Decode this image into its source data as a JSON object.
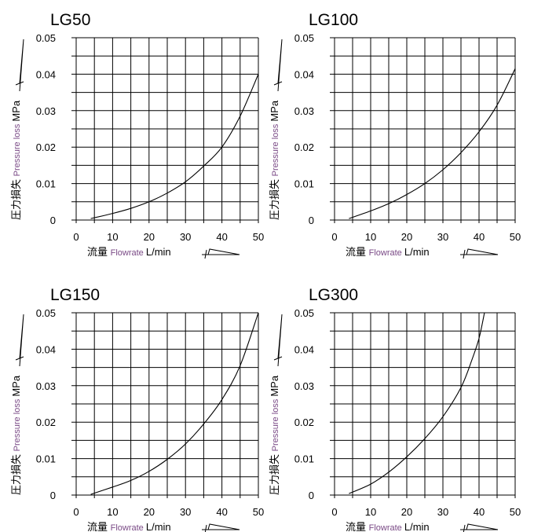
{
  "chart_data": [
    {
      "type": "line",
      "title": "LG50",
      "ylabel": {
        "jp": "圧力損失",
        "en": "Pressure loss",
        "unit": "MPa"
      },
      "xlabel": {
        "jp": "流量",
        "en": "Flowrate",
        "unit": "L/min"
      },
      "xlim": [
        0,
        50
      ],
      "ylim": [
        0,
        0.05
      ],
      "xticks": [
        "0",
        "10",
        "20",
        "30",
        "40",
        "50"
      ],
      "yticks": [
        "0",
        "0.01",
        "0.02",
        "0.03",
        "0.04",
        "0.05"
      ],
      "grid": true,
      "series": [
        {
          "x": [
            4,
            10,
            15,
            20,
            25,
            30,
            35,
            40,
            45,
            50
          ],
          "y": [
            0.0004,
            0.0018,
            0.0032,
            0.005,
            0.0074,
            0.0105,
            0.0148,
            0.02,
            0.0285,
            0.04
          ]
        }
      ]
    },
    {
      "type": "line",
      "title": "LG100",
      "ylabel": {
        "jp": "圧力損失",
        "en": "Pressure loss",
        "unit": "MPa"
      },
      "xlabel": {
        "jp": "流量",
        "en": "Flowrate",
        "unit": "L/min"
      },
      "xlim": [
        0,
        50
      ],
      "ylim": [
        0,
        0.05
      ],
      "xticks": [
        "0",
        "10",
        "20",
        "30",
        "40",
        "50"
      ],
      "yticks": [
        "0",
        "0.01",
        "0.02",
        "0.03",
        "0.04",
        "0.05"
      ],
      "grid": true,
      "series": [
        {
          "x": [
            4,
            10,
            15,
            20,
            25,
            30,
            35,
            40,
            45,
            50
          ],
          "y": [
            0.0004,
            0.0025,
            0.0045,
            0.007,
            0.01,
            0.0138,
            0.0185,
            0.0242,
            0.0315,
            0.0415
          ]
        }
      ]
    },
    {
      "type": "line",
      "title": "LG150",
      "ylabel": {
        "jp": "圧力損失",
        "en": "Pressure loss",
        "unit": "MPa"
      },
      "xlabel": {
        "jp": "流量",
        "en": "Flowrate",
        "unit": "L/min"
      },
      "xlim": [
        0,
        50
      ],
      "ylim": [
        0,
        0.05
      ],
      "xticks": [
        "0",
        "10",
        "20",
        "30",
        "40",
        "50"
      ],
      "yticks": [
        "0",
        "0.01",
        "0.02",
        "0.03",
        "0.04",
        "0.05"
      ],
      "grid": true,
      "series": [
        {
          "x": [
            4,
            10,
            15,
            20,
            25,
            30,
            35,
            40,
            45,
            50
          ],
          "y": [
            0.0002,
            0.0022,
            0.004,
            0.0065,
            0.0098,
            0.014,
            0.0195,
            0.0262,
            0.0355,
            0.05
          ]
        }
      ]
    },
    {
      "type": "line",
      "title": "LG300",
      "ylabel": {
        "jp": "圧力損失",
        "en": "Pressure loss",
        "unit": "MPa"
      },
      "xlabel": {
        "jp": "流量",
        "en": "Flowrate",
        "unit": "L/min"
      },
      "xlim": [
        0,
        50
      ],
      "ylim": [
        0,
        0.05
      ],
      "xticks": [
        "0",
        "10",
        "20",
        "30",
        "40",
        "50"
      ],
      "yticks": [
        "0",
        "0.01",
        "0.02",
        "0.03",
        "0.04",
        "0.05"
      ],
      "grid": true,
      "series": [
        {
          "x": [
            4,
            10,
            15,
            20,
            25,
            30,
            35,
            38,
            40,
            41.5
          ],
          "y": [
            0.0004,
            0.003,
            0.0063,
            0.0105,
            0.0155,
            0.0215,
            0.0295,
            0.037,
            0.043,
            0.05
          ]
        }
      ]
    }
  ]
}
